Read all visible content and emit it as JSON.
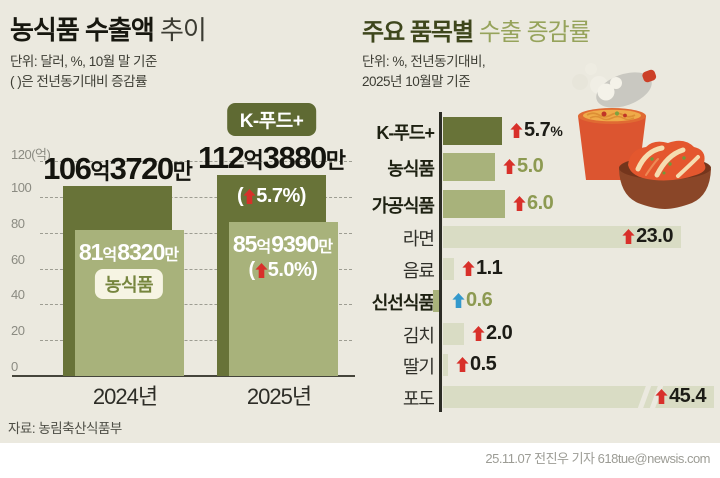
{
  "header": {
    "left": {
      "title_bold": "농식품 수출액",
      "title_light": "추이",
      "unit_line1": "단위: 달러, %, 10월 말 기준",
      "unit_line2": "( )은 전년동기대비 증감률"
    },
    "right": {
      "title_bold": "주요 품목별",
      "title_light": "수출 증감률",
      "unit_line1": "단위: %, 전년동기대비,",
      "unit_line2": "2025년 10월말 기준"
    }
  },
  "colors": {
    "background": "#ebe9df",
    "bar_dark": "#687338",
    "bar_light": "#a8b27b",
    "bar_pale": "#d9dcc4",
    "badge_green": "#5f6a33",
    "badge_cream": "#f6f4e3",
    "arrow_red": "#d8302a",
    "arrow_blue": "#3399cc",
    "olive_text": "#8d9a52",
    "dark_text": "#1c1c16"
  },
  "chart_data": [
    {
      "type": "bar",
      "title": "농식품 수출액 추이",
      "unit": "억 달러",
      "categories": [
        "2024년",
        "2025년"
      ],
      "series": [
        {
          "name": "K-푸드+",
          "values": [
            106.372,
            112.388
          ],
          "value_labels": [
            "106억3720만",
            "112억3880만"
          ],
          "changes": [
            null,
            {
              "text": "5.7%",
              "direction": "up"
            }
          ]
        },
        {
          "name": "농식품",
          "values": [
            81.832,
            85.939
          ],
          "value_labels": [
            "81억8320만",
            "85억9390만"
          ],
          "changes": [
            null,
            {
              "text": "5.0%",
              "direction": "up"
            }
          ]
        }
      ],
      "ylim": [
        0,
        120
      ],
      "yticks": [
        0,
        20,
        40,
        60,
        80,
        100,
        120
      ],
      "ytick_labels": [
        "0",
        "20",
        "40",
        "60",
        "80",
        "100",
        "120(억)"
      ],
      "grid": "dashed-horizontal",
      "legend_position": "none"
    },
    {
      "type": "bar",
      "orientation": "horizontal",
      "title": "주요 품목별 수출 증감률",
      "unit": "%",
      "items": [
        {
          "label": "K-푸드+",
          "value": 5.7,
          "display": "5.7",
          "unit": "%",
          "direction": "up",
          "emphasis": true,
          "bar_style": "dark",
          "value_style": "dark",
          "value_inside": false,
          "clipped": false
        },
        {
          "label": "농식품",
          "value": 5.0,
          "display": "5.0",
          "unit": "",
          "direction": "up",
          "emphasis": true,
          "bar_style": "medium",
          "value_style": "olive",
          "value_inside": false,
          "clipped": false
        },
        {
          "label": "가공식품",
          "value": 6.0,
          "display": "6.0",
          "unit": "",
          "direction": "up",
          "emphasis": true,
          "bar_style": "medium",
          "value_style": "olive",
          "value_inside": false,
          "clipped": false
        },
        {
          "label": "라면",
          "value": 23.0,
          "display": "23.0",
          "unit": "",
          "direction": "up",
          "emphasis": false,
          "bar_style": "pale",
          "value_style": "dark",
          "value_inside": true,
          "clipped": false
        },
        {
          "label": "음료",
          "value": 1.1,
          "display": "1.1",
          "unit": "",
          "direction": "up",
          "emphasis": false,
          "bar_style": "pale",
          "value_style": "dark",
          "value_inside": false,
          "clipped": false
        },
        {
          "label": "신선식품",
          "value": -0.6,
          "display": "0.6",
          "unit": "",
          "direction": "down",
          "emphasis": true,
          "bar_style": "medium",
          "value_style": "olive",
          "value_inside": false,
          "clipped": false
        },
        {
          "label": "김치",
          "value": 2.0,
          "display": "2.0",
          "unit": "",
          "direction": "up",
          "emphasis": false,
          "bar_style": "pale",
          "value_style": "dark",
          "value_inside": false,
          "clipped": false
        },
        {
          "label": "딸기",
          "value": 0.5,
          "display": "0.5",
          "unit": "",
          "direction": "up",
          "emphasis": false,
          "bar_style": "pale",
          "value_style": "dark",
          "value_inside": false,
          "clipped": false
        },
        {
          "label": "포도",
          "value": 45.4,
          "display": "45.4",
          "unit": "",
          "direction": "up",
          "emphasis": false,
          "bar_style": "pale",
          "value_style": "dark",
          "value_inside": true,
          "clipped": true
        }
      ],
      "xlim_shown": [
        0,
        26
      ],
      "legend_position": "none"
    }
  ],
  "icons": {
    "ramen": "ramen-cup-icon",
    "kimchi": "kimchi-bowl-icon"
  },
  "footer": {
    "source": "자료: 농림축산식품부",
    "credit": "25.11.07 전진우 기자 618tue@newsis.com"
  }
}
